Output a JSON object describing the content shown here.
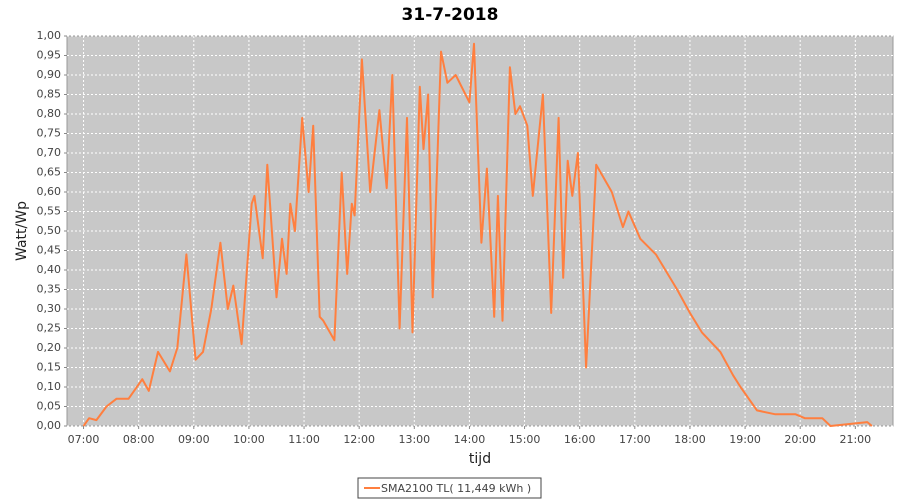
{
  "chart_data": {
    "type": "line",
    "title": "31-7-2018",
    "xlabel": "tijd",
    "ylabel": "Watt/Wp",
    "x": [
      "07:00",
      "07:06",
      "07:14",
      "07:25",
      "07:36",
      "07:49",
      "08:04",
      "08:11",
      "08:21",
      "08:34",
      "08:42",
      "08:52",
      "09:02",
      "09:10",
      "09:19",
      "09:29",
      "09:37",
      "09:43",
      "09:52",
      "10:03",
      "10:06",
      "10:15",
      "10:20",
      "10:30",
      "10:36",
      "10:41",
      "10:45",
      "10:50",
      "10:58",
      "11:05",
      "11:10",
      "11:17",
      "11:21",
      "11:33",
      "11:41",
      "11:47",
      "11:52",
      "11:55",
      "12:03",
      "12:12",
      "12:22",
      "12:30",
      "12:36",
      "12:44",
      "12:52",
      "12:58",
      "13:06",
      "13:10",
      "13:15",
      "13:20",
      "13:29",
      "13:36",
      "13:45",
      "14:00",
      "14:05",
      "14:13",
      "14:19",
      "14:27",
      "14:31",
      "14:36",
      "14:44",
      "14:50",
      "14:55",
      "15:03",
      "15:09",
      "15:20",
      "15:29",
      "15:37",
      "15:42",
      "15:47",
      "15:52",
      "15:58",
      "16:07",
      "16:18",
      "16:35",
      "16:47",
      "16:53",
      "17:06",
      "17:23",
      "17:46",
      "18:00",
      "18:13",
      "18:33",
      "18:47",
      "18:55",
      "19:13",
      "19:33",
      "19:55",
      "20:05",
      "20:24",
      "20:33",
      "21:13",
      "21:18"
    ],
    "series": [
      {
        "name": "SMA2100 TL( 11,449 kWh )",
        "color": "#ff7f3f",
        "values": [
          0.0,
          0.02,
          0.015,
          0.05,
          0.07,
          0.07,
          0.12,
          0.09,
          0.19,
          0.14,
          0.2,
          0.44,
          0.17,
          0.19,
          0.3,
          0.47,
          0.3,
          0.36,
          0.21,
          0.57,
          0.59,
          0.43,
          0.67,
          0.33,
          0.48,
          0.39,
          0.57,
          0.5,
          0.79,
          0.6,
          0.77,
          0.28,
          0.27,
          0.22,
          0.65,
          0.39,
          0.57,
          0.54,
          0.94,
          0.6,
          0.81,
          0.61,
          0.9,
          0.25,
          0.79,
          0.24,
          0.87,
          0.71,
          0.85,
          0.33,
          0.96,
          0.88,
          0.9,
          0.83,
          0.98,
          0.47,
          0.66,
          0.28,
          0.59,
          0.27,
          0.92,
          0.8,
          0.82,
          0.77,
          0.59,
          0.85,
          0.29,
          0.79,
          0.38,
          0.68,
          0.59,
          0.7,
          0.15,
          0.67,
          0.6,
          0.51,
          0.55,
          0.48,
          0.44,
          0.35,
          0.29,
          0.24,
          0.19,
          0.13,
          0.1,
          0.04,
          0.03,
          0.03,
          0.02,
          0.02,
          0.0,
          0.01,
          0.0
        ]
      }
    ],
    "xlim": [
      "06:42",
      "21:41"
    ],
    "xticks": [
      "07:00",
      "08:00",
      "09:00",
      "10:00",
      "11:00",
      "12:00",
      "13:00",
      "14:00",
      "15:00",
      "16:00",
      "17:00",
      "18:00",
      "19:00",
      "20:00",
      "21:00"
    ],
    "ylim": [
      0,
      1
    ],
    "yticks": [
      {
        "value": 0,
        "label": "0,00"
      },
      {
        "value": 0.05,
        "label": "0,05"
      },
      {
        "value": 0.1,
        "label": "0,10"
      },
      {
        "value": 0.15,
        "label": "0,15"
      },
      {
        "value": 0.2,
        "label": "0,20"
      },
      {
        "value": 0.25,
        "label": "0,25"
      },
      {
        "value": 0.3,
        "label": "0,30"
      },
      {
        "value": 0.35,
        "label": "0,35"
      },
      {
        "value": 0.4,
        "label": "0,40"
      },
      {
        "value": 0.45,
        "label": "0,45"
      },
      {
        "value": 0.5,
        "label": "0,50"
      },
      {
        "value": 0.55,
        "label": "0,55"
      },
      {
        "value": 0.6,
        "label": "0,60"
      },
      {
        "value": 0.65,
        "label": "0,65"
      },
      {
        "value": 0.7,
        "label": "0,70"
      },
      {
        "value": 0.75,
        "label": "0,75"
      },
      {
        "value": 0.8,
        "label": "0,80"
      },
      {
        "value": 0.85,
        "label": "0,85"
      },
      {
        "value": 0.9,
        "label": "0,90"
      },
      {
        "value": 0.95,
        "label": "0,95"
      },
      {
        "value": 1,
        "label": "1,00"
      }
    ],
    "grid": true,
    "legend": "bottom"
  }
}
